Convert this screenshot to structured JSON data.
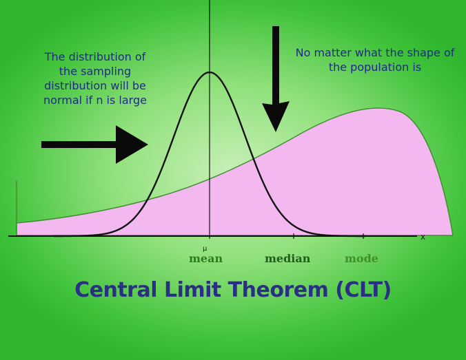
{
  "title": "Central Limit Theorem (CLT)",
  "annotations": {
    "left": "The distribution of the sampling distribution will be normal if n is large",
    "right": "No matter what the shape of the population is"
  },
  "axis": {
    "mean_label": "mean",
    "median_label": "median",
    "mode_label": "mode",
    "mu_symbol": "μ",
    "x_symbol": "x"
  },
  "colors": {
    "population_fill": "#f4b8f0",
    "population_stroke": "#3f8f2f",
    "normal_curve": "#111111",
    "arrow": "#0a0a0a",
    "title": "#2a2f84",
    "annotation_text": "#1f2a86"
  }
}
